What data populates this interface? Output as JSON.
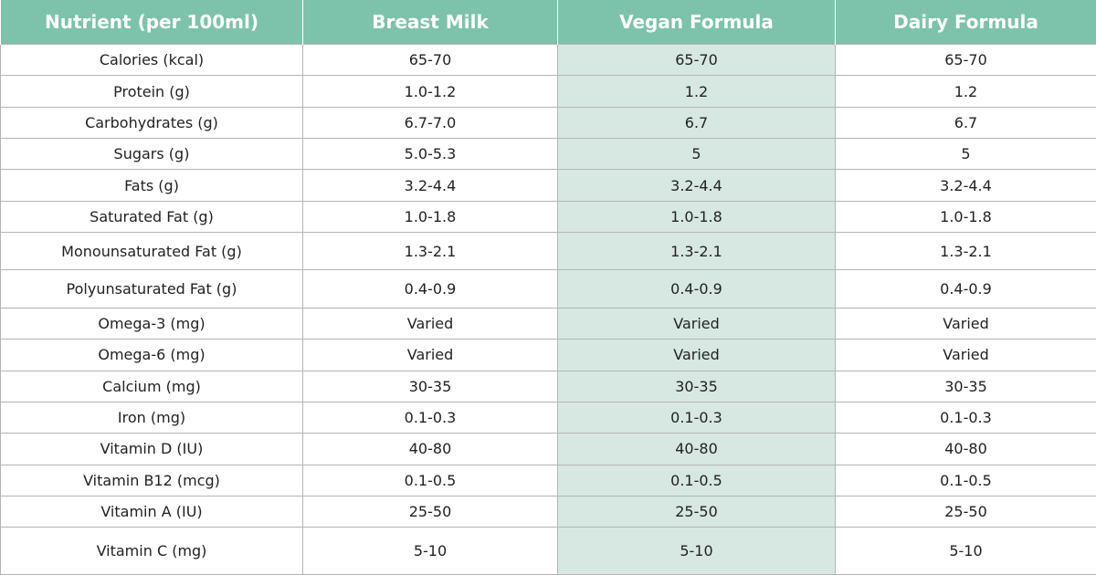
{
  "table": {
    "headers": [
      "Nutrient (per 100ml)",
      "Breast Milk",
      "Vegan Formula",
      "Dairy Formula"
    ],
    "rows": [
      [
        "Calories (kcal)",
        "65-70",
        "65-70",
        "65-70"
      ],
      [
        "Protein (g)",
        "1.0-1.2",
        "1.2",
        "1.2"
      ],
      [
        "Carbohydrates (g)",
        "6.7-7.0",
        "6.7",
        "6.7"
      ],
      [
        "Sugars (g)",
        "5.0-5.3",
        "5",
        "5"
      ],
      [
        "Fats (g)",
        "3.2-4.4",
        "3.2-4.4",
        "3.2-4.4"
      ],
      [
        "Saturated Fat (g)",
        "1.0-1.8",
        "1.0-1.8",
        "1.0-1.8"
      ],
      [
        "Monounsaturated Fat (g)",
        "1.3-2.1",
        "1.3-2.1",
        "1.3-2.1"
      ],
      [
        "Polyunsaturated Fat (g)",
        "0.4-0.9",
        "0.4-0.9",
        "0.4-0.9"
      ],
      [
        "Omega-3 (mg)",
        "Varied",
        "Varied",
        "Varied"
      ],
      [
        "Omega-6 (mg)",
        "Varied",
        "Varied",
        "Varied"
      ],
      [
        "Calcium (mg)",
        "30-35",
        "30-35",
        "30-35"
      ],
      [
        "Iron (mg)",
        "0.1-0.3",
        "0.1-0.3",
        "0.1-0.3"
      ],
      [
        "Vitamin D (IU)",
        "40-80",
        "40-80",
        "40-80"
      ],
      [
        "Vitamin B12 (mcg)",
        "0.1-0.5",
        "0.1-0.5",
        "0.1-0.5"
      ],
      [
        "Vitamin A (IU)",
        "25-50",
        "25-50",
        "25-50"
      ],
      [
        "Vitamin C (mg)",
        "5-10",
        "5-10",
        "5-10"
      ]
    ]
  },
  "colors": {
    "header_bg": "#7dc2ab",
    "highlight_column_bg": "#d6e8e1",
    "grid_line": "#b4b4b4"
  }
}
